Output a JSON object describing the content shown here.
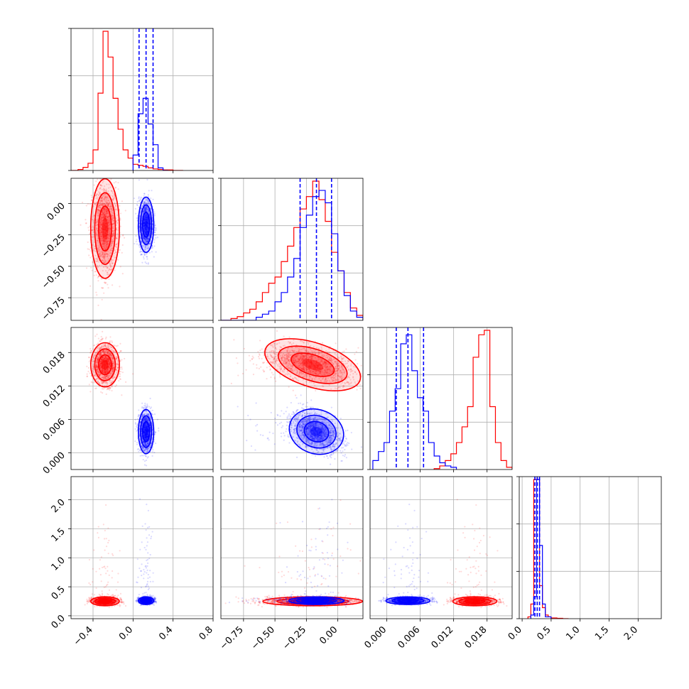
{
  "colors": {
    "series_a": "#ff0000",
    "series_b": "#0000ff",
    "grid": "#b0b0b0",
    "axes": "#000000"
  },
  "chart_data": {
    "type": "corner",
    "grid": true,
    "n_params": 4,
    "ranges": [
      [
        -0.62,
        0.8
      ],
      [
        -0.93,
        0.2
      ],
      [
        -0.003,
        0.0225
      ],
      [
        -0.05,
        2.4
      ]
    ],
    "tick_values": [
      [
        -0.4,
        0.0,
        0.4,
        0.8
      ],
      [
        -0.75,
        -0.5,
        -0.25,
        0.0
      ],
      [
        0.0,
        0.006,
        0.012,
        0.018
      ],
      [
        0.0,
        0.5,
        1.0,
        1.5,
        2.0
      ]
    ],
    "tick_labels": [
      [
        "−0.4",
        "0.0",
        "0.4",
        "0.8"
      ],
      [
        "−0.75",
        "−0.50",
        "−0.25",
        "0.00"
      ],
      [
        "0.000",
        "0.006",
        "0.012",
        "0.018"
      ],
      [
        "0.0",
        "0.5",
        "1.0",
        "1.5",
        "2.0"
      ]
    ],
    "series": [
      {
        "color": "#ff0000",
        "means": [
          -0.28,
          -0.2,
          0.0158,
          0.25
        ],
        "sds": [
          0.065,
          0.18,
          0.0018,
          0.035
        ],
        "histograms": [
          {
            "edges": [
              -0.62,
              -0.55,
              -0.5,
              -0.45,
              -0.4,
              -0.35,
              -0.3,
              -0.25,
              -0.2,
              -0.15,
              -0.1,
              -0.05,
              0.0,
              0.05,
              0.1,
              0.15,
              0.2,
              0.25,
              0.3,
              0.4,
              0.5
            ],
            "counts": [
              0,
              2,
              6,
              14,
              40,
              150,
              270,
              220,
              140,
              80,
              40,
              24,
              12,
              10,
              8,
              5,
              3,
              2,
              1,
              0
            ]
          },
          {
            "edges": [
              -0.93,
              -0.85,
              -0.8,
              -0.75,
              -0.7,
              -0.65,
              -0.6,
              -0.55,
              -0.5,
              -0.45,
              -0.4,
              -0.35,
              -0.3,
              -0.25,
              -0.2,
              -0.15,
              -0.1,
              -0.05,
              0.0,
              0.05,
              0.1,
              0.15,
              0.2
            ],
            "counts": [
              0,
              3,
              6,
              12,
              18,
              30,
              45,
              60,
              70,
              95,
              120,
              150,
              180,
              200,
              225,
              195,
              160,
              110,
              80,
              45,
              20,
              8
            ]
          },
          {
            "edges": [
              0.0085,
              0.0095,
              0.0105,
              0.0115,
              0.0125,
              0.0135,
              0.0145,
              0.0155,
              0.0165,
              0.0175,
              0.0185,
              0.0195,
              0.0205,
              0.0215,
              0.0225
            ],
            "counts": [
              2,
              8,
              20,
              35,
              60,
              95,
              140,
              250,
              300,
              310,
              140,
              60,
              20,
              5
            ]
          },
          {
            "edges": [
              0.1,
              0.15,
              0.2,
              0.25,
              0.3,
              0.35,
              0.4,
              0.45,
              0.5,
              0.6,
              0.7,
              0.8
            ],
            "counts": [
              5,
              40,
              380,
              380,
              90,
              30,
              10,
              5,
              2,
              1,
              0
            ]
          }
        ]
      },
      {
        "color": "#0000ff",
        "means": [
          0.13,
          -0.17,
          0.0038,
          0.26
        ],
        "sds": [
          0.035,
          0.1,
          0.0018,
          0.03
        ],
        "quantiles": [
          [
            0.06,
            0.13,
            0.2
          ],
          [
            -0.3,
            -0.17,
            -0.05
          ],
          [
            0.0017,
            0.0038,
            0.0066
          ],
          [
            0.22,
            0.26,
            0.3
          ]
        ],
        "histograms": [
          {
            "edges": [
              0.0,
              0.05,
              0.1,
              0.15,
              0.2,
              0.25,
              0.3,
              0.35
            ],
            "counts": [
              30,
              110,
              140,
              90,
              50,
              5,
              0
            ]
          },
          {
            "edges": [
              -0.93,
              -0.65,
              -0.6,
              -0.55,
              -0.5,
              -0.45,
              -0.4,
              -0.35,
              -0.3,
              -0.25,
              -0.2,
              -0.15,
              -0.1,
              -0.05,
              0.0,
              0.05,
              0.1,
              0.15,
              0.2
            ],
            "counts": [
              0,
              5,
              10,
              15,
              30,
              45,
              70,
              100,
              150,
              170,
              200,
              210,
              190,
              140,
              80,
              40,
              15,
              5
            ]
          },
          {
            "edges": [
              -0.0025,
              -0.0015,
              -0.0005,
              0.0005,
              0.0015,
              0.0025,
              0.0035,
              0.0045,
              0.0055,
              0.0065,
              0.0075,
              0.0085,
              0.0095,
              0.0105,
              0.0115,
              0.0125
            ],
            "counts": [
              20,
              40,
              60,
              130,
              180,
              280,
              300,
              220,
              160,
              130,
              60,
              30,
              15,
              8,
              5
            ]
          },
          {
            "edges": [
              0.15,
              0.2,
              0.25,
              0.3,
              0.35,
              0.4,
              0.5
            ],
            "counts": [
              10,
              60,
              380,
              200,
              40,
              5
            ]
          }
        ]
      }
    ]
  }
}
